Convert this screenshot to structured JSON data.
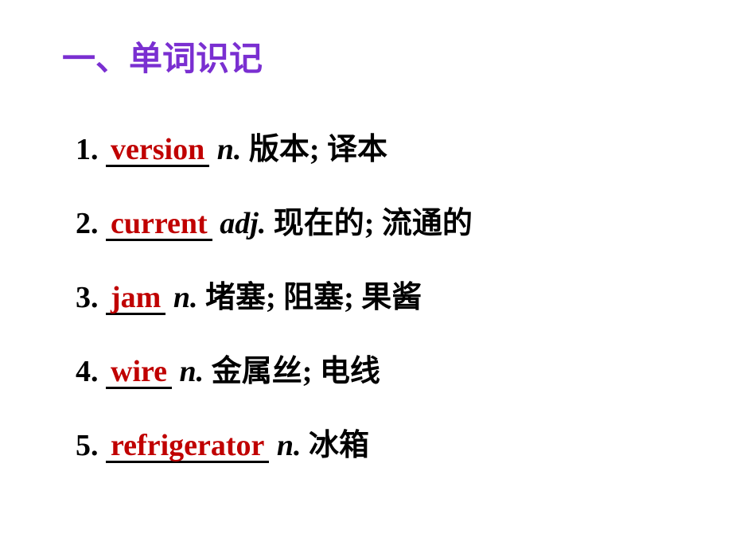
{
  "heading": {
    "text": "一、单词识记",
    "color": "#7a2fd1",
    "fontsize": 42
  },
  "items": [
    {
      "num": "1.",
      "answer": "version",
      "pos": "n.",
      "def": "版本; 译本"
    },
    {
      "num": "2.",
      "answer": "current",
      "pos": "adj.",
      "def": "现在的; 流通的"
    },
    {
      "num": "3.",
      "answer": "jam",
      "pos": "n.",
      "def": "堵塞; 阻塞; 果酱"
    },
    {
      "num": "4.",
      "answer": "wire",
      "pos": "n.",
      "def": "金属丝; 电线"
    },
    {
      "num": "5.",
      "answer": "refrigerator",
      "pos": "n.",
      "def": "冰箱"
    }
  ],
  "styles": {
    "background_color": "#ffffff",
    "text_color": "#000000",
    "answer_color": "#c00000",
    "underline_color": "#000000",
    "item_fontsize": 38,
    "item_spacing": 38
  }
}
